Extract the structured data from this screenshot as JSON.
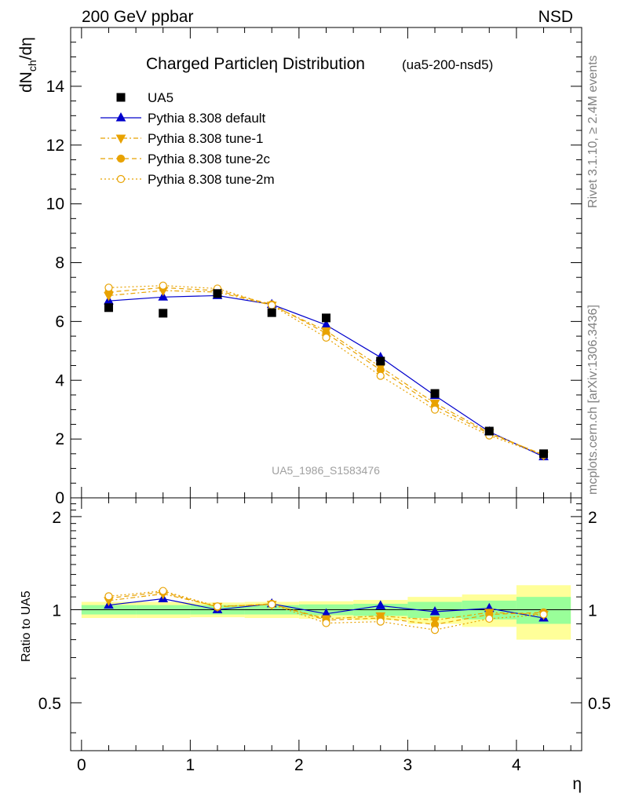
{
  "header": {
    "left": "200 GeV ppbar",
    "right": "NSD"
  },
  "side": {
    "rivet": "Rivet 3.1.10, ≥ 2.4M events",
    "mcplots": "mcplots.cern.ch [arXiv:1306.3436]"
  },
  "colors": {
    "data": "#000000",
    "default": "#0000cc",
    "tunes": "#e8a200",
    "band_inner": "#99ff99",
    "band_outer": "#ffff99"
  },
  "chart_data": [
    {
      "type": "scatter",
      "title": "Charged Particleη Distribution",
      "title_tag": "(ua5-200-nsd5)",
      "ylabel": "dN",
      "ylabel_sub": "ch",
      "ylabel_tail": "/dη",
      "xlim": [
        -0.1,
        4.6
      ],
      "ylim": [
        0,
        16
      ],
      "yticks": [
        0,
        2,
        4,
        6,
        8,
        10,
        12,
        14
      ],
      "ytick_labels": [
        "0",
        "2",
        "4",
        "6",
        "8",
        "10",
        "12",
        "14"
      ],
      "watermark": "UA5_1986_S1583476",
      "x": [
        0.25,
        0.75,
        1.25,
        1.75,
        2.25,
        2.75,
        3.25,
        3.75,
        4.25
      ],
      "series": [
        {
          "name": "UA5",
          "values": [
            6.47,
            6.28,
            6.95,
            6.3,
            6.12,
            4.65,
            3.55,
            2.27,
            1.5
          ]
        },
        {
          "name": "Pythia 8.308 default",
          "values": [
            6.7,
            6.83,
            6.88,
            6.58,
            5.88,
            4.78,
            3.48,
            2.25,
            1.4
          ]
        },
        {
          "name": "Pythia 8.308 tune-1",
          "values": [
            6.88,
            7.05,
            7.0,
            6.55,
            5.68,
            4.45,
            3.22,
            2.22,
            1.45
          ]
        },
        {
          "name": "Pythia 8.308 tune-2c",
          "values": [
            7.0,
            7.15,
            7.05,
            6.58,
            5.6,
            4.35,
            3.12,
            2.18,
            1.47
          ]
        },
        {
          "name": "Pythia 8.308 tune-2m",
          "values": [
            7.15,
            7.22,
            7.12,
            6.55,
            5.45,
            4.15,
            3.0,
            2.12,
            1.45
          ]
        }
      ]
    },
    {
      "type": "line",
      "ylabel": "Ratio to UA5",
      "xlabel": "η",
      "xlim": [
        -0.1,
        4.6
      ],
      "ylim": [
        0.35,
        2.3
      ],
      "log_y": true,
      "xticks": [
        0,
        1,
        2,
        3,
        4
      ],
      "xtick_labels": [
        "0",
        "1",
        "2",
        "3",
        "4"
      ],
      "yticks": [
        0.5,
        1,
        2
      ],
      "ytick_labels": [
        "0.5",
        "1",
        "2"
      ],
      "x": [
        0.25,
        0.75,
        1.25,
        1.75,
        2.25,
        2.75,
        3.25,
        3.75,
        4.25
      ],
      "bands": {
        "bins": [
          [
            0,
            0.5
          ],
          [
            0.5,
            1.0
          ],
          [
            1.0,
            1.5
          ],
          [
            1.5,
            2.0
          ],
          [
            2.0,
            2.5
          ],
          [
            2.5,
            3.0
          ],
          [
            3.0,
            3.5
          ],
          [
            3.5,
            4.0
          ],
          [
            4.0,
            4.5
          ]
        ],
        "inner": [
          0.035,
          0.035,
          0.035,
          0.035,
          0.04,
          0.045,
          0.06,
          0.07,
          0.1
        ],
        "outer": [
          0.06,
          0.06,
          0.055,
          0.06,
          0.065,
          0.075,
          0.1,
          0.12,
          0.2
        ]
      },
      "series": [
        {
          "name": "Pythia 8.308 default",
          "values": [
            1.035,
            1.085,
            1.0,
            1.045,
            0.97,
            1.03,
            0.985,
            1.01,
            0.94
          ]
        },
        {
          "name": "Pythia 8.308 tune-1",
          "values": [
            1.07,
            1.125,
            1.025,
            1.04,
            0.935,
            0.955,
            0.925,
            0.98,
            0.965
          ]
        },
        {
          "name": "Pythia 8.308 tune-2c",
          "values": [
            1.09,
            1.14,
            1.02,
            1.045,
            0.925,
            0.94,
            0.895,
            0.965,
            0.98
          ]
        },
        {
          "name": "Pythia 8.308 tune-2m",
          "values": [
            1.105,
            1.15,
            1.025,
            1.04,
            0.905,
            0.915,
            0.86,
            0.935,
            0.965
          ]
        }
      ]
    }
  ]
}
